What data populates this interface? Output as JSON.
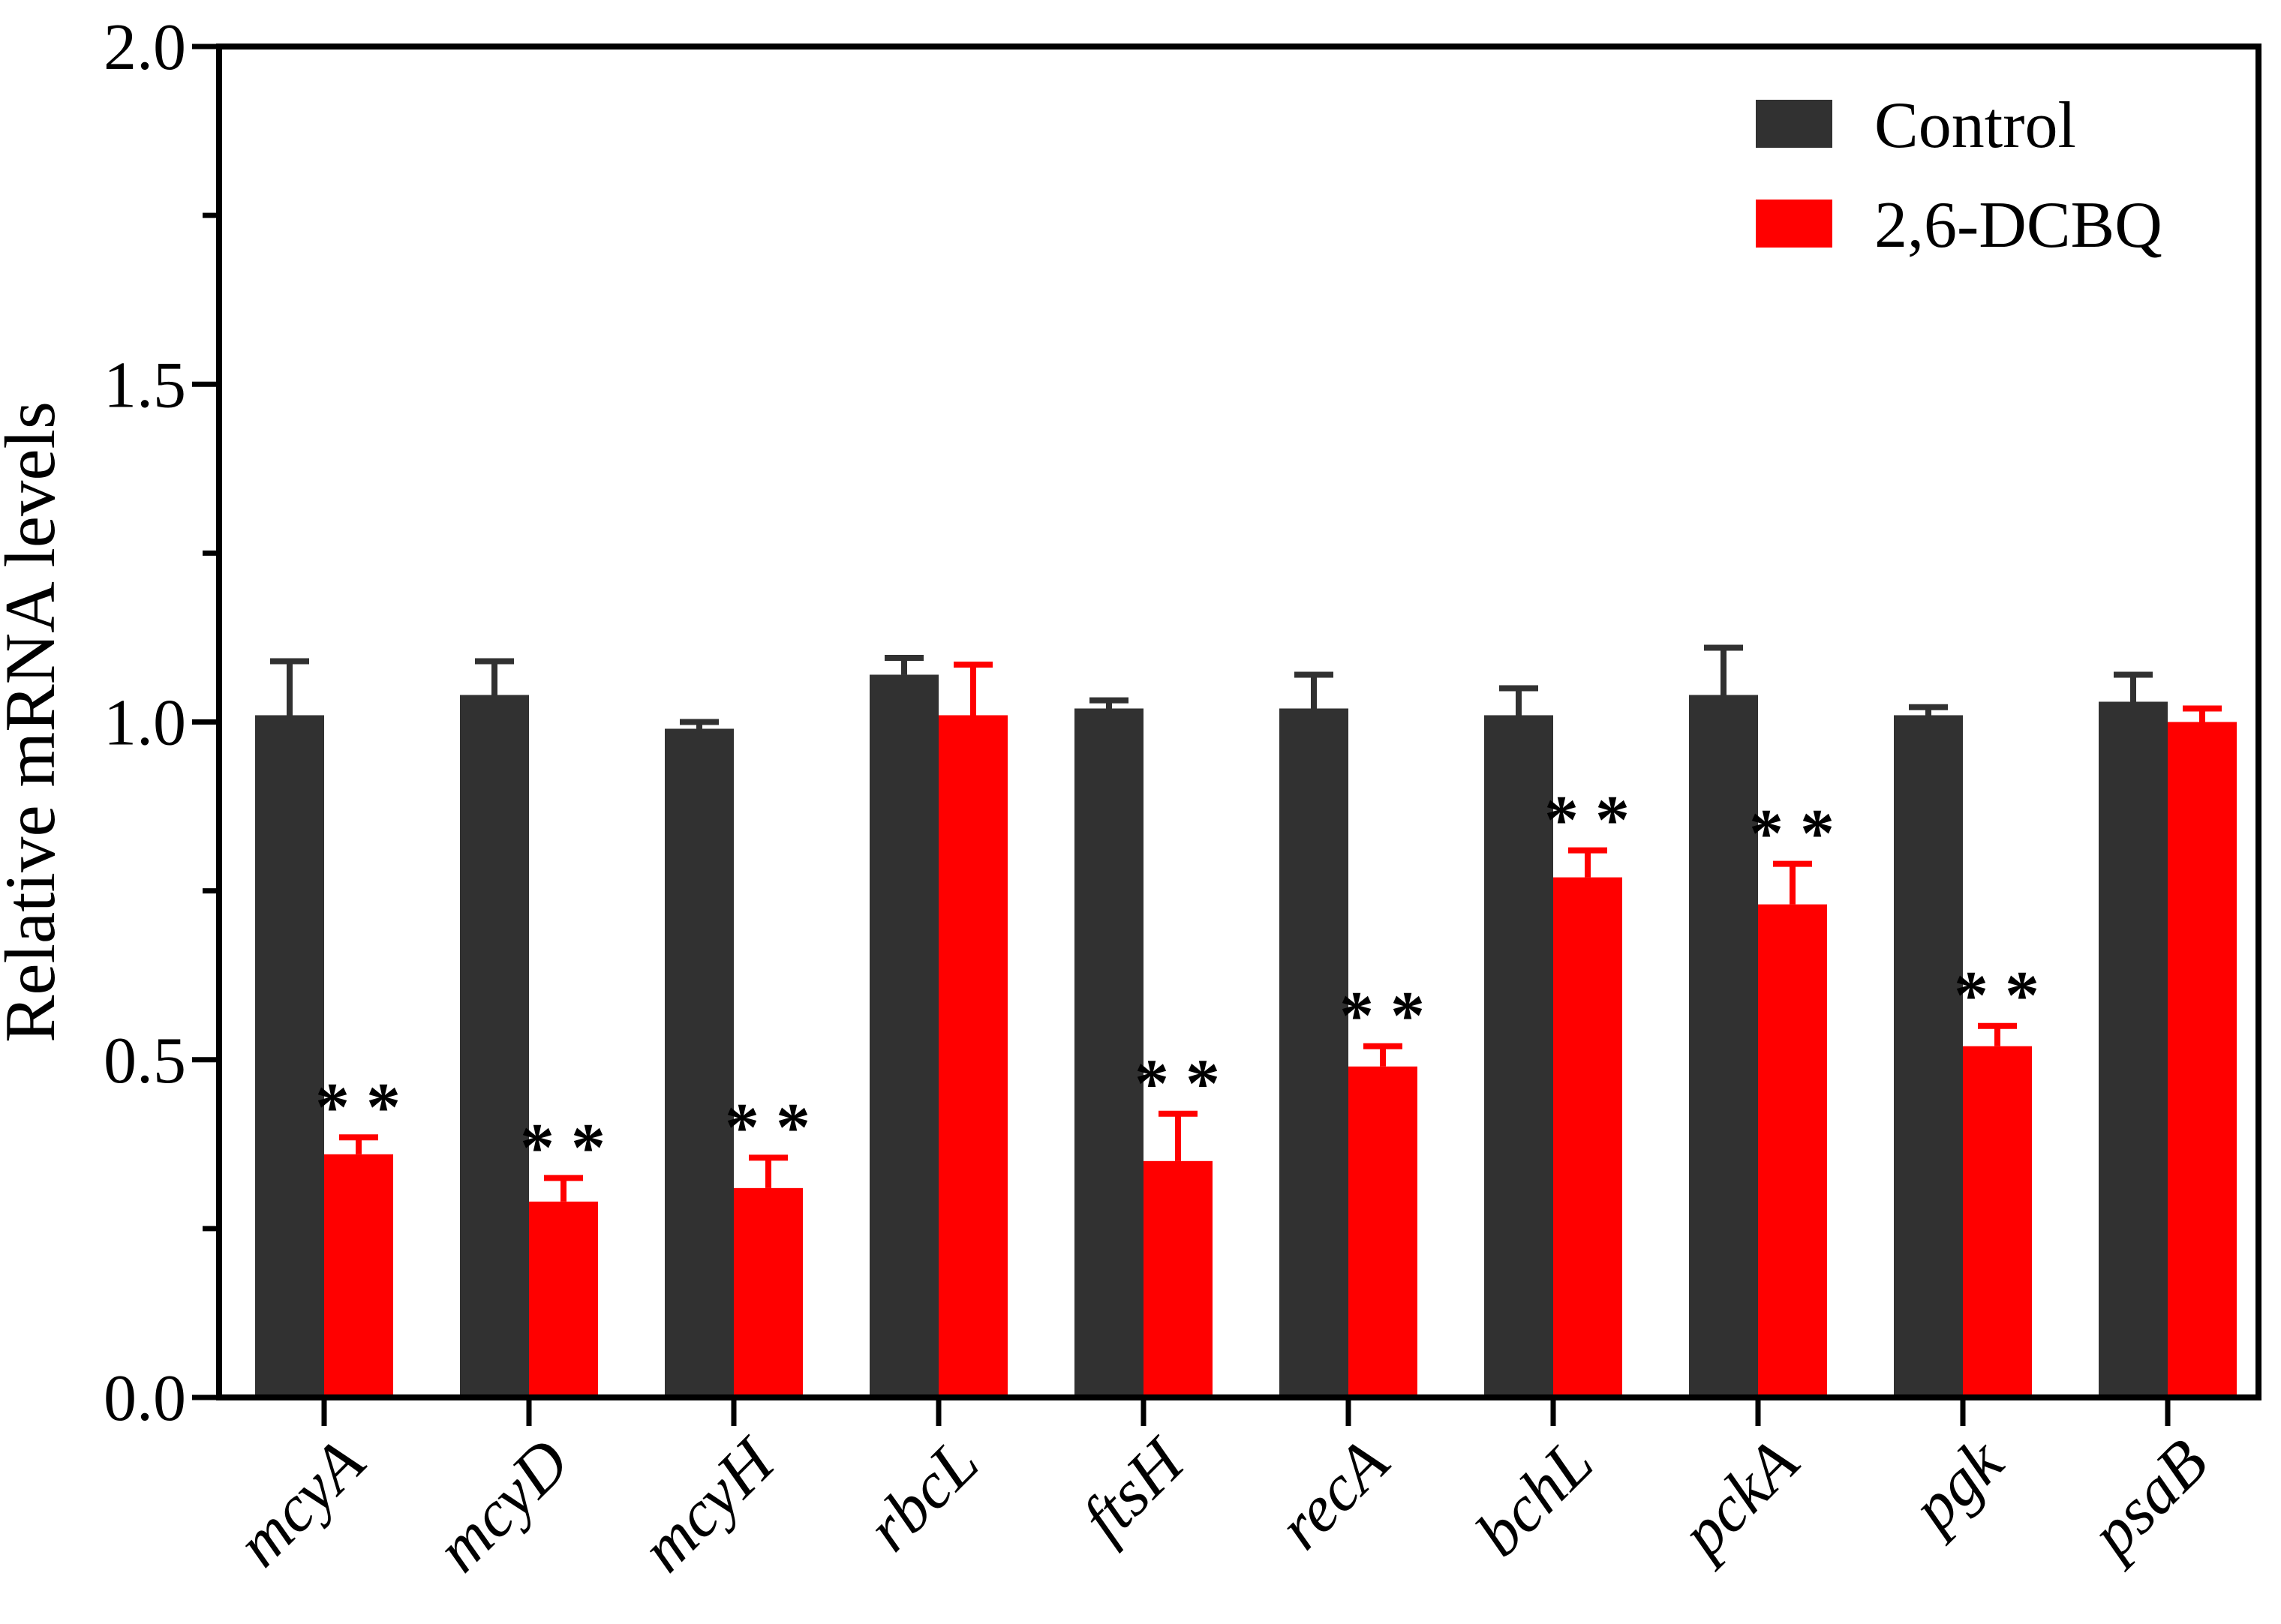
{
  "chart_data": {
    "type": "bar",
    "title": "",
    "xlabel": "",
    "ylabel": "Relative mRNA levels",
    "ylim": [
      0.0,
      2.0
    ],
    "ytick_labels": [
      "0.0",
      "0.5",
      "1.0",
      "1.5",
      "2.0"
    ],
    "ytick_values": [
      0.0,
      0.5,
      1.0,
      1.5,
      2.0
    ],
    "ytick_minor_values": [
      0.25,
      0.75,
      1.25,
      1.75
    ],
    "grid": false,
    "frame": "full-box",
    "legend_position": "top-right",
    "categories": [
      "mcyA",
      "mcyD",
      "mcyH",
      "rbcL",
      "ftsH",
      "recA",
      "bchL",
      "pckA",
      "pgk",
      "psaB"
    ],
    "series": [
      {
        "name": "Control",
        "color": "#313131",
        "values": [
          1.01,
          1.04,
          0.99,
          1.07,
          1.02,
          1.02,
          1.01,
          1.04,
          1.01,
          1.03
        ],
        "errors_plus": [
          0.08,
          0.05,
          0.01,
          0.025,
          0.012,
          0.05,
          0.04,
          0.07,
          0.012,
          0.04
        ]
      },
      {
        "name": "2,6-DCBQ",
        "color": "#ff0000",
        "values": [
          0.36,
          0.29,
          0.31,
          1.01,
          0.35,
          0.49,
          0.77,
          0.73,
          0.52,
          1.0
        ],
        "errors_plus": [
          0.025,
          0.035,
          0.045,
          0.075,
          0.07,
          0.03,
          0.04,
          0.06,
          0.03,
          0.02
        ]
      }
    ],
    "significance": {
      "marker": "**",
      "on_series": "2,6-DCBQ",
      "flags": [
        true,
        true,
        true,
        false,
        true,
        true,
        true,
        true,
        true,
        false
      ]
    }
  },
  "colors": {
    "axis": "#000000",
    "background": "#ffffff",
    "control_bar": "#313131",
    "treatment_bar": "#ff0000",
    "significance_marker": "#000000"
  }
}
